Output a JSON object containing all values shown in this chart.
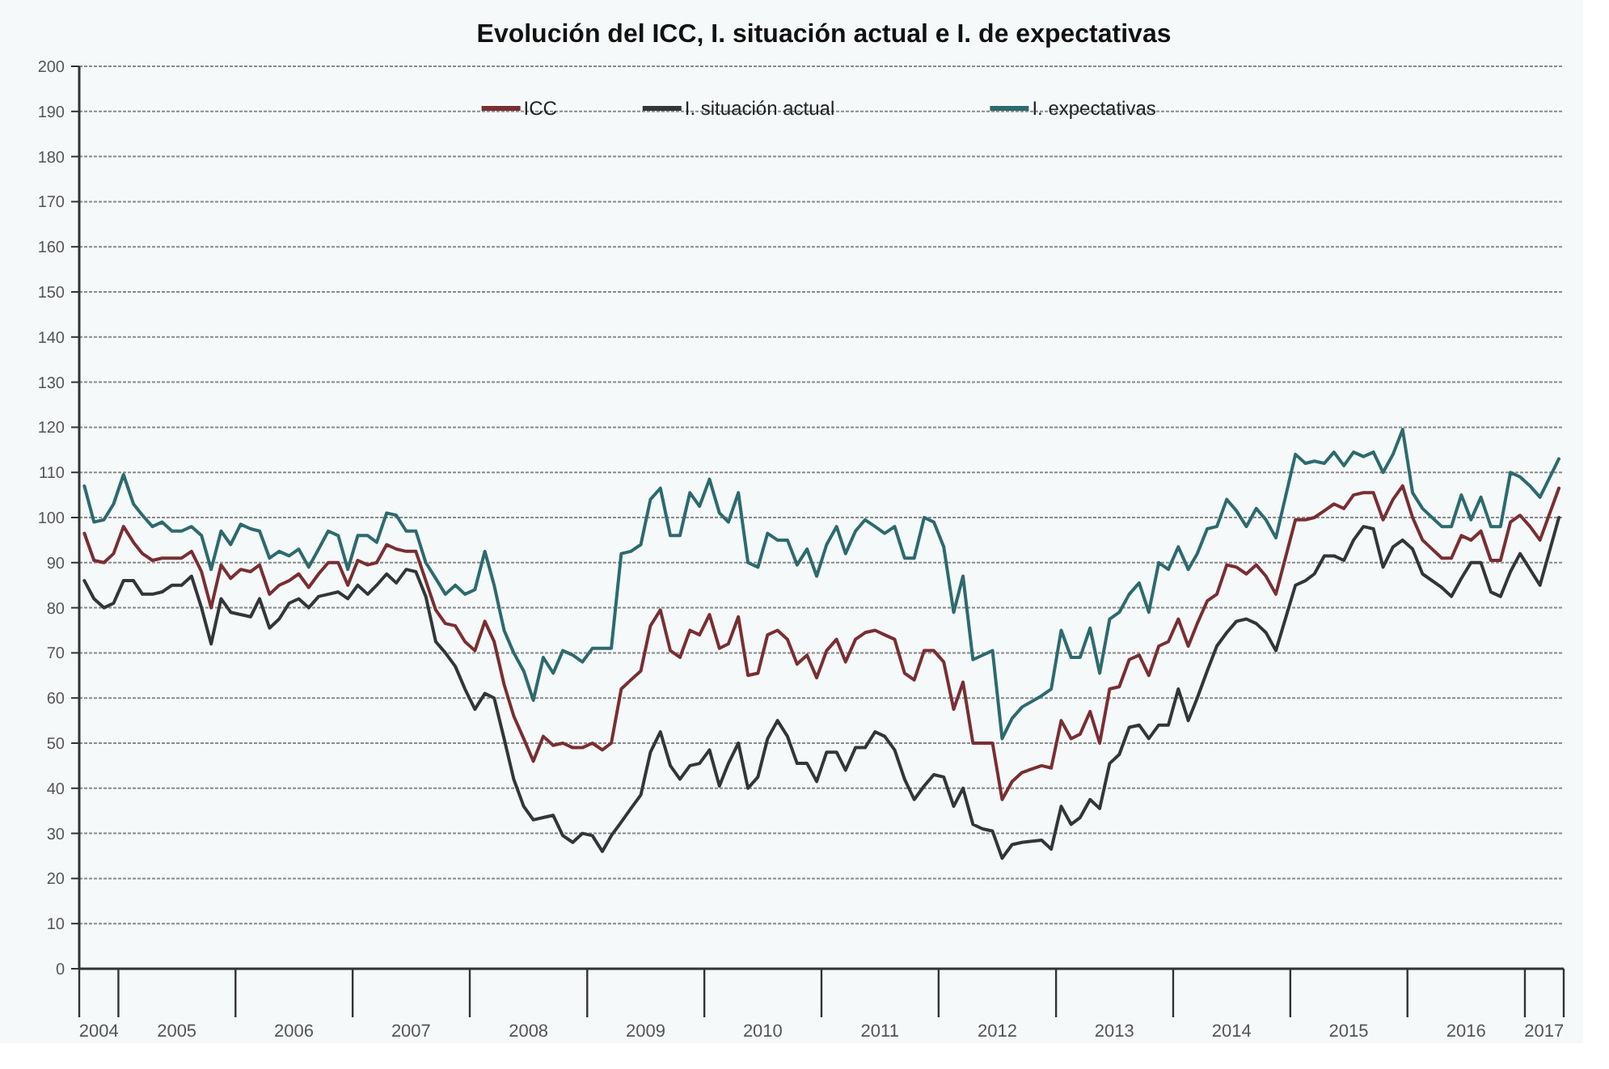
{
  "chart_data": {
    "type": "line",
    "title": "Evolución del ICC, I. situación actual e I. de expectativas",
    "x": [
      "2004-09",
      "2004-10",
      "2004-11",
      "2004-12",
      "2005-01",
      "2005-02",
      "2005-03",
      "2005-04",
      "2005-05",
      "2005-06",
      "2005-07",
      "2005-08",
      "2005-09",
      "2005-10",
      "2005-11",
      "2005-12",
      "2006-01",
      "2006-02",
      "2006-03",
      "2006-04",
      "2006-05",
      "2006-06",
      "2006-07",
      "2006-08",
      "2006-09",
      "2006-10",
      "2006-11",
      "2006-12",
      "2007-01",
      "2007-02",
      "2007-03",
      "2007-04",
      "2007-05",
      "2007-06",
      "2007-07",
      "2007-08",
      "2007-09",
      "2007-10",
      "2007-11",
      "2007-12",
      "2008-01",
      "2008-02",
      "2008-03",
      "2008-04",
      "2008-05",
      "2008-06",
      "2008-07",
      "2008-08",
      "2008-09",
      "2008-10",
      "2008-11",
      "2008-12",
      "2009-01",
      "2009-02",
      "2009-03",
      "2009-04",
      "2009-05",
      "2009-06",
      "2009-07",
      "2009-08",
      "2009-09",
      "2009-10",
      "2009-11",
      "2009-12",
      "2010-01",
      "2010-02",
      "2010-03",
      "2010-04",
      "2010-05",
      "2010-06",
      "2010-07",
      "2010-08",
      "2010-09",
      "2010-10",
      "2010-11",
      "2010-12",
      "2011-01",
      "2011-02",
      "2011-03",
      "2011-04",
      "2011-05",
      "2011-06",
      "2011-07",
      "2011-08",
      "2011-09",
      "2011-10",
      "2011-11",
      "2011-12",
      "2012-01",
      "2012-02",
      "2012-03",
      "2012-04",
      "2012-05",
      "2012-06",
      "2012-07",
      "2012-08",
      "2012-09",
      "2012-11",
      "2012-12",
      "2013-01",
      "2013-02",
      "2013-03",
      "2013-04",
      "2013-05",
      "2013-06",
      "2013-07",
      "2013-08",
      "2013-09",
      "2013-10",
      "2013-11",
      "2013-12",
      "2014-01",
      "2014-02",
      "2014-03",
      "2014-04",
      "2014-05",
      "2014-06",
      "2014-07",
      "2014-08",
      "2014-09",
      "2014-10",
      "2014-11",
      "2015-01",
      "2015-02",
      "2015-03",
      "2015-04",
      "2015-05",
      "2015-06",
      "2015-07",
      "2015-08",
      "2015-09",
      "2015-10",
      "2015-11",
      "2015-12",
      "2016-01",
      "2016-02",
      "2016-04",
      "2016-05",
      "2016-06",
      "2016-07",
      "2016-08",
      "2016-09",
      "2016-10",
      "2016-11",
      "2016-12",
      "2017-01",
      "2017-02",
      "2017-04"
    ],
    "series": [
      {
        "name": "ICC",
        "color": "#7a2e32",
        "values": [
          96.5,
          90.5,
          90,
          92,
          98,
          94.5,
          92,
          90.5,
          91,
          91,
          91,
          92.5,
          88,
          80,
          89.5,
          86.5,
          88.5,
          88,
          89.5,
          83,
          85,
          86,
          87.5,
          84.5,
          87.5,
          90,
          90,
          85,
          90.5,
          89.5,
          90,
          94,
          93,
          92.5,
          92.5,
          86,
          79.5,
          76.5,
          76,
          72.5,
          70.5,
          77,
          72.5,
          63,
          56,
          51,
          46,
          51.5,
          49.5,
          50,
          49,
          49,
          50,
          48.5,
          50,
          62,
          64,
          66,
          76,
          79.5,
          70.5,
          69,
          75,
          74,
          78.5,
          71,
          72,
          78,
          65,
          65.5,
          74,
          75,
          73,
          67.5,
          69.5,
          64.5,
          70.5,
          73,
          68,
          73,
          74.5,
          75,
          74,
          73,
          65.5,
          64,
          70.5,
          70.5,
          68,
          57.5,
          63.5,
          50,
          50,
          50,
          37.5,
          41.5,
          43.5,
          45,
          44.5,
          55,
          51,
          52,
          57,
          50,
          62,
          62.5,
          68.5,
          69.5,
          65,
          71.5,
          72.5,
          77.5,
          71.5,
          76.5,
          81.5,
          83,
          89.5,
          89,
          87.5,
          89.5,
          87,
          83,
          99.5,
          99.5,
          100,
          101.5,
          103,
          102,
          105,
          105.5,
          105.5,
          99.5,
          104,
          107,
          100,
          95,
          91,
          91,
          96,
          95,
          97,
          90.5,
          90.5,
          99,
          100.5,
          98,
          95,
          106.5
        ]
      },
      {
        "name": "I. situación actual",
        "color": "#333639",
        "values": [
          86,
          82,
          80,
          81,
          86,
          86,
          83,
          83,
          83.5,
          85,
          85,
          87,
          80,
          72,
          82,
          79,
          78.5,
          78,
          82,
          75.5,
          77.5,
          81,
          82,
          80,
          82.5,
          83,
          83.5,
          82,
          85,
          83,
          85,
          87.5,
          85.5,
          88.5,
          88,
          82.5,
          72.5,
          70,
          67,
          62,
          57.5,
          61,
          60,
          51,
          42,
          36,
          33,
          33.5,
          34,
          29.5,
          28,
          30,
          29.5,
          26,
          29.5,
          32.5,
          35.5,
          38.5,
          48,
          52.5,
          45,
          42,
          45,
          45.5,
          48.5,
          40.5,
          45.5,
          50,
          40,
          42.5,
          51,
          55,
          51.5,
          45.5,
          45.5,
          41.5,
          48,
          48,
          44,
          49,
          49,
          52.5,
          51.5,
          48.5,
          42,
          37.5,
          40.5,
          43,
          42.5,
          36,
          40,
          32,
          31,
          30.5,
          24.5,
          27.5,
          28,
          28.5,
          26.5,
          36,
          32,
          33.5,
          37.5,
          35.5,
          45.5,
          47.5,
          53.5,
          54,
          51,
          54,
          54,
          62,
          55,
          60,
          66,
          71.5,
          74.5,
          77,
          77.5,
          76.5,
          74.5,
          70.5,
          85,
          86,
          87.5,
          91.5,
          91.5,
          90.5,
          95,
          98,
          97.5,
          89,
          93.5,
          95,
          93,
          87.5,
          84.5,
          82.5,
          86.5,
          90,
          90,
          83.5,
          82.5,
          88,
          92,
          88.5,
          85,
          100
        ]
      },
      {
        "name": "I. expectativas",
        "color": "#2d6a6e",
        "values": [
          107,
          99,
          99.5,
          103,
          109.5,
          103,
          100.5,
          98,
          99,
          97,
          97,
          98,
          96,
          88.5,
          97,
          94,
          98.5,
          97.5,
          97,
          91,
          92.5,
          91.5,
          93,
          89,
          93,
          97,
          96,
          88.5,
          96,
          96,
          94.5,
          101,
          100.5,
          97,
          97,
          90,
          86.5,
          83,
          85,
          83,
          84,
          92.5,
          85,
          75,
          70,
          66,
          59.5,
          69,
          65.5,
          70.5,
          69.5,
          68,
          71,
          71,
          71,
          92,
          92.5,
          94,
          104,
          106.5,
          96,
          96,
          105.5,
          102.5,
          108.5,
          101,
          99,
          105.5,
          90,
          89,
          96.5,
          95,
          95,
          89.5,
          93,
          87,
          94,
          98,
          92,
          97,
          99.5,
          98,
          96.5,
          98,
          91,
          91,
          100,
          99,
          93.5,
          79,
          87,
          68.5,
          69.5,
          70.5,
          51,
          55.5,
          58,
          60.5,
          62,
          75,
          69,
          69,
          75.5,
          65.5,
          77.5,
          79,
          83,
          85.5,
          79,
          90,
          88.5,
          93.5,
          88.5,
          92,
          97.5,
          98,
          104,
          101.5,
          98,
          102,
          99.5,
          95.5,
          114,
          112,
          112.5,
          112,
          114.5,
          111.5,
          114.5,
          113.5,
          114.5,
          110,
          114,
          119.5,
          105.5,
          102,
          98,
          98,
          105,
          99.5,
          104.5,
          98,
          98,
          110,
          109,
          107,
          104.5,
          113
        ]
      }
    ],
    "xlim": [
      "2004-08-16",
      "2017-04-16"
    ],
    "xticks": [
      {
        "value": "2004-08-16",
        "label": null
      },
      {
        "value": "2004-10-16",
        "label": "2004"
      },
      {
        "value": "2004-12-16",
        "label": null
      },
      {
        "value": "2005-06-16",
        "label": "2005"
      },
      {
        "value": "2005-12-16",
        "label": null
      },
      {
        "value": "2006-06-16",
        "label": "2006"
      },
      {
        "value": "2006-12-16",
        "label": null
      },
      {
        "value": "2007-06-16",
        "label": "2007"
      },
      {
        "value": "2007-12-16",
        "label": null
      },
      {
        "value": "2008-06-16",
        "label": "2008"
      },
      {
        "value": "2008-12-16",
        "label": null
      },
      {
        "value": "2009-06-16",
        "label": "2009"
      },
      {
        "value": "2009-12-16",
        "label": null
      },
      {
        "value": "2010-06-16",
        "label": "2010"
      },
      {
        "value": "2010-12-16",
        "label": null
      },
      {
        "value": "2011-06-16",
        "label": "2011"
      },
      {
        "value": "2011-12-16",
        "label": null
      },
      {
        "value": "2012-06-16",
        "label": "2012"
      },
      {
        "value": "2012-12-16",
        "label": null
      },
      {
        "value": "2013-06-16",
        "label": "2013"
      },
      {
        "value": "2013-12-16",
        "label": null
      },
      {
        "value": "2014-06-16",
        "label": "2014"
      },
      {
        "value": "2014-12-16",
        "label": null
      },
      {
        "value": "2015-06-16",
        "label": "2015"
      },
      {
        "value": "2015-12-16",
        "label": null
      },
      {
        "value": "2016-06-16",
        "label": "2016"
      },
      {
        "value": "2016-12-16",
        "label": null
      },
      {
        "value": "2017-02-14",
        "label": "2017"
      },
      {
        "value": "2017-04-16",
        "label": null
      }
    ],
    "ylim": [
      0,
      200
    ],
    "yticks": [
      0,
      10,
      20,
      30,
      40,
      50,
      60,
      70,
      80,
      90,
      100,
      110,
      120,
      130,
      140,
      150,
      160,
      170,
      180,
      190,
      200
    ],
    "grid": "y",
    "legend": "top",
    "line_style": "solid",
    "marker": "none"
  }
}
